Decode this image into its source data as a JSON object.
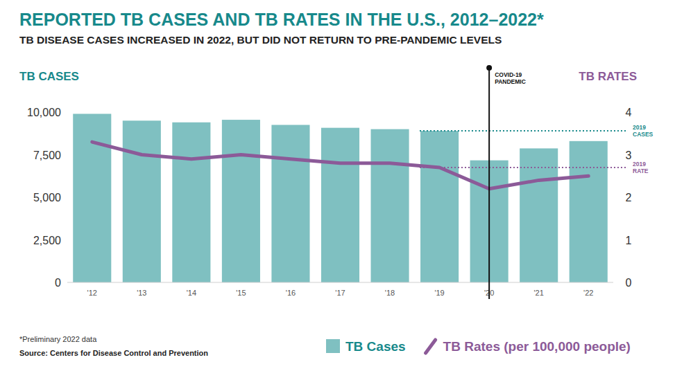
{
  "chart_data": {
    "type": "bar",
    "title": "REPORTED TB CASES AND TB RATES IN THE U.S., 2012–2022*",
    "subtitle": "TB DISEASE CASES INCREASED IN 2022, BUT DID NOT RETURN TO PRE-PANDEMIC LEVELS",
    "y_label": "TB CASES",
    "y2_label": "TB RATES",
    "categories": [
      "'12",
      "'13",
      "'14",
      "'15",
      "'16",
      "'17",
      "'18",
      "'19",
      "'20",
      "'21",
      "'22"
    ],
    "series": [
      {
        "name": "TB Cases",
        "type": "bar",
        "color": "#7fc0c1",
        "values": [
          9900,
          9500,
          9400,
          9550,
          9250,
          9080,
          9000,
          8900,
          7170,
          7870,
          8300
        ]
      },
      {
        "name": "TB Rates (per 100,000 people)",
        "type": "line",
        "color": "#8c5a98",
        "axis": "y2",
        "values": [
          3.3,
          3.0,
          2.9,
          3.0,
          2.9,
          2.8,
          2.8,
          2.7,
          2.2,
          2.4,
          2.5
        ]
      }
    ],
    "ylim": [
      0,
      10000
    ],
    "yticks": [
      0,
      {
        "value": 2500,
        "label": "2,500"
      },
      {
        "value": 5000,
        "label": "5,000"
      },
      {
        "value": 7500,
        "label": "7,500"
      },
      {
        "value": 10000,
        "label": "10,000"
      }
    ],
    "y2lim": [
      0,
      4
    ],
    "y2ticks": [
      0,
      1,
      2,
      3,
      4
    ],
    "grid": false,
    "legend": "bottom",
    "annotations": [
      {
        "text": [
          "COVID-19",
          "PANDEMIC"
        ],
        "x": "'20"
      }
    ],
    "reference_lines": [
      {
        "label": [
          "2019",
          "CASES"
        ],
        "value": 8900,
        "axis": "y",
        "from": "'19"
      },
      {
        "label": [
          "2019",
          "RATE"
        ],
        "value": 2.7,
        "axis": "y2",
        "from": "'19"
      }
    ],
    "footnote": "*Preliminary 2022 data",
    "source": "Source: Centers for Disease Control and Prevention"
  }
}
